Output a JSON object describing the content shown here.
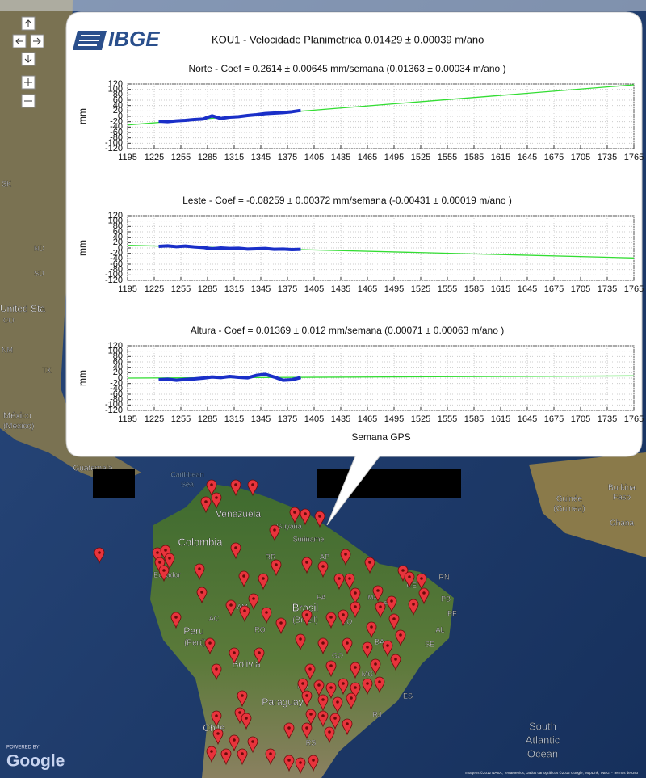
{
  "popup": {
    "logo": "IBGE",
    "title": "KOU1 - Velocidade Planimetrica 0.01429 ± 0.00039 m/ano"
  },
  "chart_data": [
    {
      "type": "line",
      "title": "Norte -  Coef = 0.2614 ± 0.00645 mm/semana (0.01363 ± 0.00034 m/ano )",
      "y_label": "mm",
      "xlim": [
        1195,
        1765
      ],
      "xticks": [
        1195,
        1225,
        1255,
        1285,
        1315,
        1345,
        1375,
        1405,
        1435,
        1465,
        1495,
        1525,
        1555,
        1585,
        1615,
        1645,
        1675,
        1705,
        1735,
        1765
      ],
      "ylim": [
        -120,
        120
      ],
      "yticks": [
        -120,
        -100,
        -80,
        -60,
        -40,
        -20,
        0,
        20,
        40,
        60,
        80,
        100,
        120
      ],
      "grid": true,
      "series": [
        {
          "color": "#1a2fc8",
          "x": [
            1230,
            1240,
            1250,
            1260,
            1270,
            1280,
            1290,
            1300,
            1310,
            1320,
            1330,
            1340,
            1350,
            1360,
            1370,
            1380,
            1390
          ],
          "values": [
            -18,
            -20,
            -17,
            -15,
            -12,
            -10,
            2,
            -8,
            -3,
            -1,
            3,
            6,
            10,
            12,
            14,
            17,
            22
          ]
        },
        {
          "color": "#33dd33",
          "x": [
            1195,
            1765
          ],
          "values": [
            -32,
            117
          ]
        }
      ]
    },
    {
      "type": "line",
      "title": "Leste -  Coef = -0.08259 ± 0.00372 mm/semana (-0.00431 ± 0.00019 m/ano )",
      "y_label": "mm",
      "xlim": [
        1195,
        1765
      ],
      "xticks": [
        1195,
        1225,
        1255,
        1285,
        1315,
        1345,
        1375,
        1405,
        1435,
        1465,
        1495,
        1525,
        1555,
        1585,
        1615,
        1645,
        1675,
        1705,
        1735,
        1765
      ],
      "ylim": [
        -120,
        120
      ],
      "yticks": [
        -120,
        -100,
        -80,
        -60,
        -40,
        -20,
        0,
        20,
        40,
        60,
        80,
        100,
        120
      ],
      "grid": true,
      "series": [
        {
          "color": "#1a2fc8",
          "x": [
            1230,
            1240,
            1250,
            1260,
            1270,
            1280,
            1290,
            1300,
            1310,
            1320,
            1330,
            1340,
            1350,
            1360,
            1370,
            1380,
            1390
          ],
          "values": [
            6,
            8,
            5,
            7,
            4,
            2,
            -3,
            0,
            -2,
            -1,
            -4,
            -3,
            -2,
            -5,
            -4,
            -6,
            -5
          ]
        },
        {
          "color": "#33dd33",
          "x": [
            1195,
            1765
          ],
          "values": [
            10,
            -37
          ]
        }
      ]
    },
    {
      "type": "line",
      "title": "Altura -  Coef = 0.01369 ± 0.012 mm/semana (0.00071 ± 0.00063 m/ano )",
      "y_label": "mm",
      "x_label": "Semana GPS",
      "xlim": [
        1195,
        1765
      ],
      "xticks": [
        1195,
        1225,
        1255,
        1285,
        1315,
        1345,
        1375,
        1405,
        1435,
        1465,
        1495,
        1525,
        1555,
        1585,
        1615,
        1645,
        1675,
        1705,
        1735,
        1765
      ],
      "ylim": [
        -120,
        120
      ],
      "yticks": [
        -120,
        -100,
        -80,
        -60,
        -40,
        -20,
        0,
        20,
        40,
        60,
        80,
        100,
        120
      ],
      "grid": true,
      "series": [
        {
          "color": "#1a2fc8",
          "x": [
            1230,
            1240,
            1250,
            1260,
            1270,
            1280,
            1290,
            1300,
            1310,
            1320,
            1330,
            1340,
            1350,
            1360,
            1370,
            1380,
            1390
          ],
          "values": [
            -6,
            -4,
            -8,
            -5,
            -3,
            0,
            4,
            2,
            6,
            3,
            1,
            10,
            14,
            4,
            -8,
            -6,
            2
          ]
        },
        {
          "color": "#33dd33",
          "x": [
            1195,
            1765
          ],
          "values": [
            0,
            8
          ]
        }
      ]
    }
  ],
  "map": {
    "labels": [
      "Guatemala",
      "Caribbean",
      "Sea",
      "Venezuela",
      "Colombia",
      "Guyana",
      "Suriname",
      "Ecuador",
      "RR",
      "AP",
      "AM",
      "PA",
      "MA",
      "Brasil",
      "(Brazil)",
      "Peru",
      "(Perú)",
      "AC",
      "RO",
      "TO",
      "PI",
      "CE",
      "RN",
      "PB",
      "PE",
      "AL",
      "SE",
      "BA",
      "Bolivia",
      "GO",
      "MG",
      "MS",
      "ES",
      "RJ",
      "Paraguay",
      "Chile",
      "RS",
      "South",
      "Atlantic",
      "Ocean",
      "Burkina",
      "Faso",
      "Guinée",
      "(Guinea)",
      "Ghana",
      "México",
      "(Mexico)",
      "United Sta",
      "CO",
      "ND",
      "SD",
      "NM",
      "TX",
      "SK"
    ],
    "powered_by": "POWERED BY",
    "logo": "Google",
    "attribution": "Imagens ©2012 NASA, TerraMetrics, Dados cartográficos ©2012 Google, MapLink, INEGI - Termos de Uso"
  }
}
